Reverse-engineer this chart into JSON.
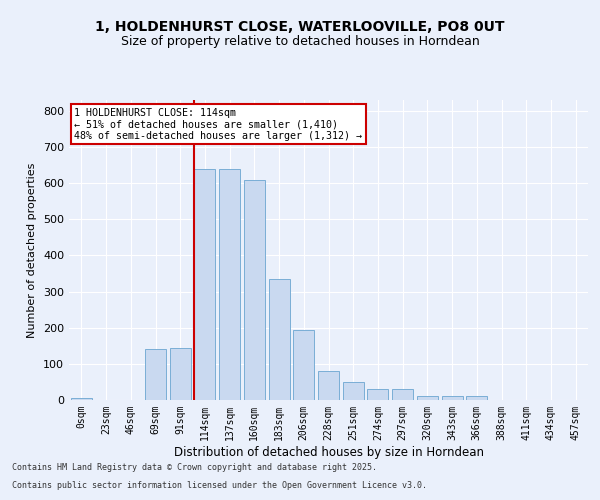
{
  "title1": "1, HOLDENHURST CLOSE, WATERLOOVILLE, PO8 0UT",
  "title2": "Size of property relative to detached houses in Horndean",
  "xlabel": "Distribution of detached houses by size in Horndean",
  "ylabel": "Number of detached properties",
  "categories": [
    "0sqm",
    "23sqm",
    "46sqm",
    "69sqm",
    "91sqm",
    "114sqm",
    "137sqm",
    "160sqm",
    "183sqm",
    "206sqm",
    "228sqm",
    "251sqm",
    "274sqm",
    "297sqm",
    "320sqm",
    "343sqm",
    "366sqm",
    "388sqm",
    "411sqm",
    "434sqm",
    "457sqm"
  ],
  "values": [
    5,
    0,
    0,
    140,
    145,
    640,
    640,
    610,
    335,
    195,
    80,
    50,
    30,
    30,
    10,
    10,
    10,
    0,
    0,
    0,
    0
  ],
  "bar_color": "#c9d9f0",
  "bar_edge_color": "#7aaed6",
  "red_line_index": 5,
  "annotation_text": "1 HOLDENHURST CLOSE: 114sqm\n← 51% of detached houses are smaller (1,410)\n48% of semi-detached houses are larger (1,312) →",
  "annotation_box_color": "#ffffff",
  "annotation_box_edge": "#cc0000",
  "ylim": [
    0,
    830
  ],
  "yticks": [
    0,
    100,
    200,
    300,
    400,
    500,
    600,
    700,
    800
  ],
  "background_color": "#eaf0fb",
  "plot_background": "#eaf0fb",
  "footer1": "Contains HM Land Registry data © Crown copyright and database right 2025.",
  "footer2": "Contains public sector information licensed under the Open Government Licence v3.0.",
  "red_line_color": "#cc0000",
  "title1_fontsize": 10,
  "title2_fontsize": 9,
  "grid_color": "#ffffff"
}
